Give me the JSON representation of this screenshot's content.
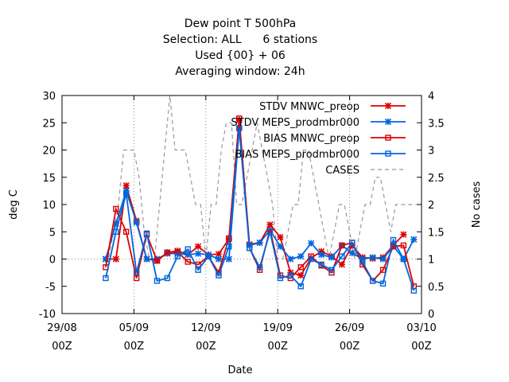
{
  "chart_data": {
    "type": "line",
    "title_lines": [
      "Dew point T 500hPa",
      "Selection: ALL      6 stations",
      "Used {00} + 06",
      "Averaging window: 24h"
    ],
    "xlabel": "Date",
    "ylabel": "deg C",
    "y2label": "No cases",
    "x_ticks": [
      {
        "label": "29/08",
        "sub": "00Z",
        "x": 0
      },
      {
        "label": "05/09",
        "sub": "00Z",
        "x": 7
      },
      {
        "label": "12/09",
        "sub": "00Z",
        "x": 14
      },
      {
        "label": "19/09",
        "sub": "00Z",
        "x": 21
      },
      {
        "label": "26/09",
        "sub": "00Z",
        "x": 28
      },
      {
        "label": "03/10",
        "sub": "00Z",
        "x": 35
      }
    ],
    "xlim": [
      0,
      35
    ],
    "ylim": [
      -10,
      30
    ],
    "y_ticks": [
      -10,
      -5,
      0,
      5,
      10,
      15,
      20,
      25,
      30
    ],
    "y2lim": [
      0,
      4
    ],
    "y2_ticks": [
      "0",
      "0.5",
      "1",
      "1.5",
      "2",
      "2.5",
      "3",
      "3.5",
      "4"
    ],
    "grid": true,
    "legend_position": "top-right",
    "series": [
      {
        "name": "STDV MNWC_preop",
        "axis": "y1",
        "color": "#dd0000",
        "marker": "x",
        "dash": "",
        "x": [
          4.25,
          5.25,
          6.25,
          7.25,
          8.25,
          9.25,
          10.25,
          11.25,
          12.25,
          13.25,
          14.25,
          15.25,
          16.25,
          17.25,
          18.25,
          19.25,
          20.25,
          21.25,
          22.25,
          23.25,
          24.25,
          25.25,
          26.25,
          27.25,
          28.25,
          29.25,
          30.25,
          31.25,
          32.25,
          33.25
        ],
        "values": [
          0,
          0,
          13.5,
          7,
          0,
          -0.3,
          1.2,
          1.5,
          0.8,
          2.3,
          0.8,
          0.9,
          3.7,
          25.5,
          2.7,
          3,
          6.3,
          4,
          -2.5,
          -3,
          0.2,
          1.4,
          0.5,
          -1,
          2.5,
          0.3,
          0.1,
          0.3,
          2.5,
          4.5
        ]
      },
      {
        "name": "STDV MEPS_prodmbr000",
        "axis": "y1",
        "color": "#0066dd",
        "marker": "x",
        "dash": "",
        "x": [
          4.25,
          5.25,
          6.25,
          7.25,
          8.25,
          9.25,
          10.25,
          11.25,
          12.25,
          13.25,
          14.25,
          15.25,
          16.25,
          17.25,
          18.25,
          19.25,
          20.25,
          21.25,
          22.25,
          23.25,
          24.25,
          25.25,
          26.25,
          27.25,
          28.25,
          29.25,
          30.25,
          31.25,
          32.25,
          33.25,
          34.25
        ],
        "values": [
          0,
          6.5,
          12.5,
          6.7,
          0,
          0,
          1,
          1,
          0.8,
          1,
          0.8,
          0,
          0,
          24,
          2.5,
          3,
          5.3,
          2.3,
          0,
          0.5,
          2.9,
          0.8,
          0.3,
          2.5,
          1.1,
          0,
          0.3,
          0,
          2.4,
          0,
          3.6
        ]
      },
      {
        "name": "BIAS MNWC_preop",
        "axis": "y1",
        "color": "#dd0000",
        "marker": "square",
        "dash": "",
        "x": [
          4.25,
          5.25,
          6.25,
          7.25,
          8.25,
          9.25,
          10.25,
          11.25,
          12.25,
          13.25,
          14.25,
          15.25,
          16.25,
          17.25,
          18.25,
          19.25,
          20.25,
          21.25,
          22.25,
          23.25,
          24.25,
          25.25,
          26.25,
          27.25,
          28.25,
          29.25,
          30.25,
          31.25,
          32.25,
          33.25,
          34.25
        ],
        "values": [
          -1.5,
          9.2,
          5,
          -3.5,
          4.5,
          -0.3,
          1.2,
          1.3,
          -0.5,
          -1,
          0.5,
          -2.5,
          3.8,
          25.8,
          2,
          -2,
          5.5,
          -3,
          -3.5,
          -1.5,
          0.5,
          -1.2,
          -2.5,
          2.5,
          3,
          -1,
          -4,
          -2,
          2.3,
          2.5,
          -5
        ]
      },
      {
        "name": "BIAS MEPS_prodmbr000",
        "axis": "y1",
        "color": "#0066dd",
        "marker": "square",
        "dash": "",
        "x": [
          4.25,
          5.25,
          6.25,
          7.25,
          8.25,
          9.25,
          10.25,
          11.25,
          12.25,
          13.25,
          14.25,
          15.25,
          16.25,
          17.25,
          18.25,
          19.25,
          20.25,
          21.25,
          22.25,
          23.25,
          24.25,
          25.25,
          26.25,
          27.25,
          28.25,
          29.25,
          30.25,
          31.25,
          32.25,
          33.25,
          34.25
        ],
        "values": [
          -3.5,
          5,
          12,
          -2.5,
          4.7,
          -4,
          -3.5,
          0.5,
          1.8,
          -2,
          0.5,
          -3,
          2.3,
          24,
          2,
          -1.5,
          5,
          -3.5,
          -3,
          -5,
          0,
          -1,
          -2,
          0.5,
          3,
          -0.5,
          -4,
          -4.5,
          3.5,
          0,
          -5.8
        ]
      },
      {
        "name": "CASES",
        "axis": "y2",
        "color": "#999999",
        "marker": "none",
        "dash": "dashed",
        "x": [
          4.0,
          4.5,
          5.0,
          5.5,
          6.0,
          6.5,
          7.0,
          7.5,
          8.0,
          8.5,
          9.0,
          9.5,
          10.0,
          10.5,
          11.0,
          11.5,
          12.0,
          12.5,
          13.0,
          13.5,
          14.0,
          14.5,
          15.0,
          15.5,
          16.0,
          16.5,
          17.0,
          17.5,
          18.0,
          18.5,
          19.0,
          19.5,
          20.0,
          20.5,
          21.0,
          21.5,
          22.0,
          22.5,
          23.0,
          23.5,
          24.0,
          24.5,
          25.0,
          25.5,
          26.0,
          26.5,
          27.0,
          27.5,
          28.0,
          28.5,
          29.0,
          29.5,
          30.0,
          30.5,
          31.0,
          31.5,
          32.0,
          32.5,
          33.0,
          33.5,
          34.0,
          34.5
        ],
        "values": [
          1,
          1,
          1.5,
          2,
          3,
          3,
          3,
          2.5,
          1.5,
          1,
          1,
          2,
          3,
          4,
          3,
          3,
          3,
          2.5,
          2,
          2,
          1,
          2,
          2,
          3,
          3.5,
          3.5,
          2,
          2,
          2.5,
          3,
          3.5,
          3,
          2.5,
          2,
          1,
          1,
          1.5,
          2,
          2,
          3,
          3,
          2.5,
          2,
          1.5,
          1,
          1.5,
          2,
          2,
          1.5,
          1,
          1.5,
          2,
          2,
          2.5,
          2.5,
          2,
          1.5,
          2,
          2,
          2,
          2,
          2
        ]
      }
    ]
  }
}
